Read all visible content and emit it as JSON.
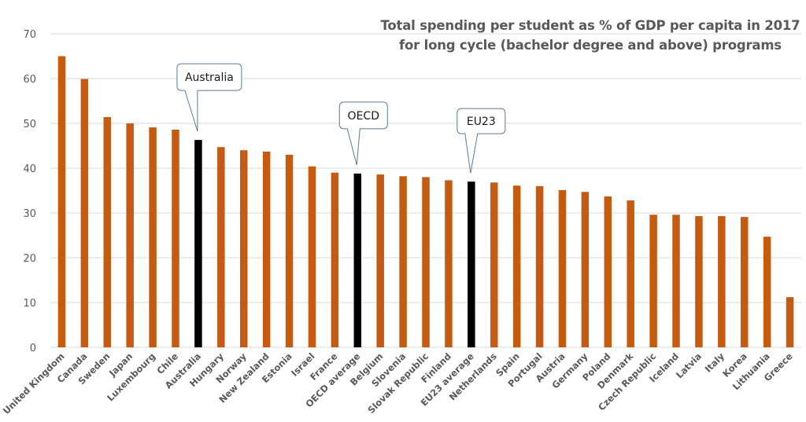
{
  "chart_data": {
    "type": "bar",
    "title": "Total spending per student as % of GDP per capita in 2017 for long cycle (bachelor degree and above) programs",
    "title_lines": [
      "Total spending per student as % of GDP per capita in 2017",
      "for long cycle (bachelor degree and above) programs"
    ],
    "xlabel": "",
    "ylabel": "",
    "ylim": [
      0,
      70
    ],
    "yticks": [
      0,
      10,
      20,
      30,
      40,
      50,
      60,
      70
    ],
    "grid": true,
    "legend": "none",
    "colors": {
      "default_bar": "#c55a11",
      "highlight_bar": "#000000",
      "gridline": "#d9d9d9",
      "axis_text": "#595959",
      "callout_border": "#5b7a94"
    },
    "categories": [
      "United Kingdom",
      "Canada",
      "Sweden",
      "Japan",
      "Luxembourg",
      "Chile",
      "Australia",
      "Hungary",
      "Norway",
      "New Zealand",
      "Estonia",
      "Israel",
      "France",
      "OECD average",
      "Belgium",
      "Slovenia",
      "Slovak Republic",
      "Finland",
      "EU23 average",
      "Netherlands",
      "Spain",
      "Portugal",
      "Austria",
      "Germany",
      "Poland",
      "Denmark",
      "Czech Republic",
      "Iceland",
      "Latvia",
      "Italy",
      "Korea",
      "Lithuania",
      "Greece"
    ],
    "values": [
      65.0,
      59.9,
      51.4,
      50.0,
      49.1,
      48.6,
      46.3,
      44.7,
      44.0,
      43.7,
      43.0,
      40.4,
      39.0,
      38.8,
      38.6,
      38.2,
      38.0,
      37.3,
      37.0,
      36.8,
      36.1,
      36.0,
      35.1,
      34.7,
      33.7,
      32.8,
      29.6,
      29.6,
      29.3,
      29.3,
      29.1,
      24.7,
      11.2
    ],
    "highlighted": [
      "Australia",
      "OECD average",
      "EU23 average"
    ],
    "annotations": [
      {
        "text": "Australia",
        "category": "Australia"
      },
      {
        "text": "OECD",
        "category": "OECD average"
      },
      {
        "text": "EU23",
        "category": "EU23 average"
      }
    ]
  }
}
